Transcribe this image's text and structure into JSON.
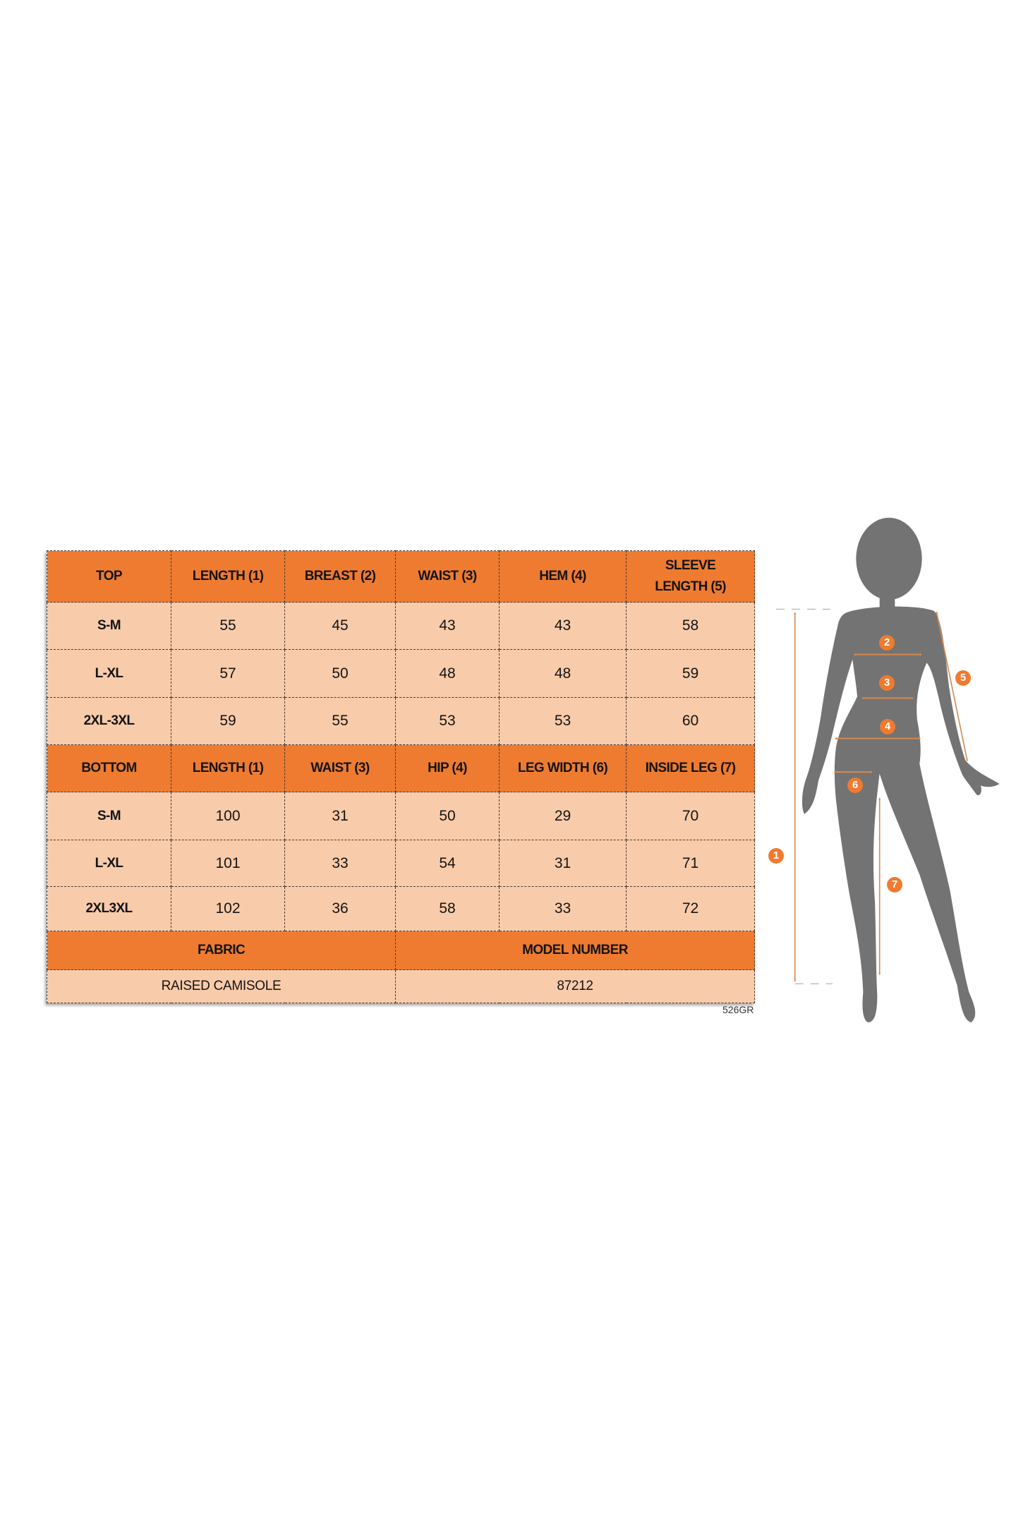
{
  "top": {
    "headers": [
      "TOP",
      "LENGTH (1)",
      "BREAST (2)",
      "WAIST (3)",
      "HEM (4)",
      "SLEEVE LENGTH (5)"
    ],
    "rows": [
      [
        "S-M",
        "55",
        "45",
        "43",
        "43",
        "58"
      ],
      [
        "L-XL",
        "57",
        "50",
        "48",
        "48",
        "59"
      ],
      [
        "2XL-3XL",
        "59",
        "55",
        "53",
        "53",
        "60"
      ]
    ]
  },
  "bottom": {
    "headers": [
      "BOTTOM",
      "LENGTH (1)",
      "WAIST (3)",
      "HIP (4)",
      "LEG WIDTH (6)",
      "INSIDE LEG (7)"
    ],
    "rows": [
      [
        "S-M",
        "100",
        "31",
        "50",
        "29",
        "70"
      ],
      [
        "L-XL",
        "101",
        "33",
        "54",
        "31",
        "71"
      ],
      [
        "2XL3XL",
        "102",
        "36",
        "58",
        "33",
        "72"
      ]
    ]
  },
  "info": {
    "fabric_label": "FABRIC",
    "model_label": "MODEL NUMBER",
    "fabric_value": "RAISED CAMISOLE",
    "model_value": "87212"
  },
  "code": "526GR",
  "figure": {
    "icon": "body-silhouette-icon",
    "markers": [
      "1",
      "2",
      "3",
      "4",
      "5",
      "6",
      "7"
    ]
  },
  "colors": {
    "header": "#EE7B30",
    "cell": "#F8CBAA",
    "silhouette": "#737373",
    "measure_line": "#D4894F"
  }
}
